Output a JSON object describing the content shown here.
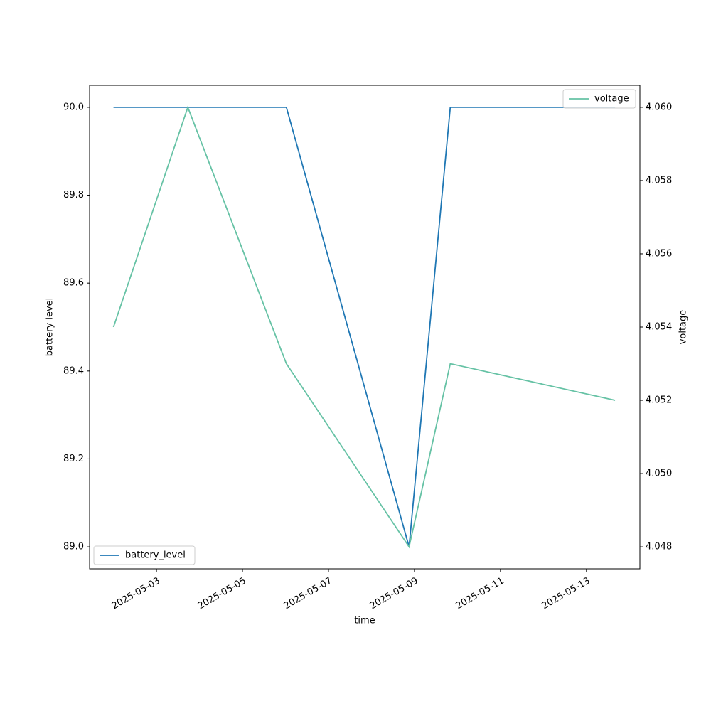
{
  "chart_data": {
    "type": "line",
    "x": [
      "2025-05-02T00:00",
      "2025-05-03T17:30",
      "2025-05-06T00:30",
      "2025-05-08T21:00",
      "2025-05-09T20:00",
      "2025-05-13T16:00"
    ],
    "xlabel": "time",
    "ylabel": "battery level",
    "y2label": "voltage",
    "xlim": [
      "2025-05-01T10:40",
      "2025-05-14T05:50"
    ],
    "xticks": [
      "2025-05-03",
      "2025-05-05",
      "2025-05-07",
      "2025-05-09",
      "2025-05-11",
      "2025-05-13"
    ],
    "ylim": [
      88.95,
      90.05
    ],
    "yticks": [
      {
        "value": 89.0,
        "label": "89.0"
      },
      {
        "value": 89.2,
        "label": "89.2"
      },
      {
        "value": 89.4,
        "label": "89.4"
      },
      {
        "value": 89.6,
        "label": "89.6"
      },
      {
        "value": 89.8,
        "label": "89.8"
      },
      {
        "value": 90.0,
        "label": "90.0"
      }
    ],
    "y2lim": [
      4.0474,
      4.0606
    ],
    "y2ticks": [
      4.048,
      {
        "value": 4.05,
        "label": "4.050"
      },
      4.052,
      4.054,
      4.056,
      4.058,
      {
        "value": 4.06,
        "label": "4.060"
      }
    ],
    "grid": false,
    "series": [
      {
        "name": "battery_level",
        "color": "#1f77b4",
        "values": [
          90,
          90,
          90,
          89,
          90,
          90
        ],
        "legend": "lower left"
      },
      {
        "name": "voltage",
        "color": "#66c2a5",
        "axis": "y2",
        "values": [
          4.054,
          4.06,
          4.053,
          4.048,
          4.053,
          4.052
        ],
        "legend": "upper right"
      }
    ]
  }
}
